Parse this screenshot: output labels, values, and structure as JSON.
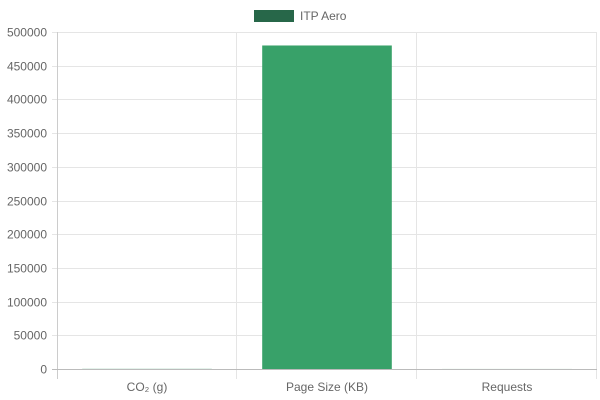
{
  "chart_data": {
    "type": "bar",
    "categories": [
      "CO₂ (g)",
      "Page Size (KB)",
      "Requests"
    ],
    "series": [
      {
        "name": "ITP Aero",
        "values": [
          200,
          480000,
          60
        ]
      }
    ],
    "ylim": [
      0,
      500000
    ],
    "yticks": [
      0,
      50000,
      100000,
      150000,
      200000,
      250000,
      300000,
      350000,
      400000,
      450000,
      500000
    ],
    "grid": true,
    "legend_position": "top",
    "colors": {
      "bar_fill": "#38a169",
      "legend_swatch": "#276749",
      "grid": "#e5e5e5",
      "text": "#666666"
    }
  }
}
